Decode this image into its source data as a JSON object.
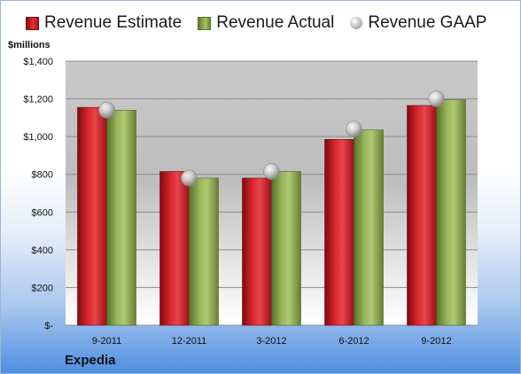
{
  "chart_data": {
    "type": "bar",
    "title": "",
    "units_label": "$millions",
    "company": "Expedia",
    "categories": [
      "9-2011",
      "12-2011",
      "3-2012",
      "6-2012",
      "9-2012"
    ],
    "series": [
      {
        "name": "Revenue Estimate",
        "kind": "bar",
        "color": "#c8161f",
        "values": [
          1155,
          815,
          780,
          985,
          1165
        ]
      },
      {
        "name": "Revenue Actual",
        "kind": "bar",
        "color": "#8fad4f",
        "values": [
          1140,
          780,
          815,
          1035,
          1195
        ]
      },
      {
        "name": "Revenue GAAP",
        "kind": "marker",
        "color": "#b0b0b0",
        "values": [
          1140,
          780,
          815,
          1040,
          1200
        ]
      }
    ],
    "ylim": [
      0,
      1400
    ],
    "yticks": [
      {
        "value": 0,
        "label": "$-"
      },
      {
        "value": 200,
        "label": "$200"
      },
      {
        "value": 400,
        "label": "$400"
      },
      {
        "value": 600,
        "label": "$600"
      },
      {
        "value": 800,
        "label": "$800"
      },
      {
        "value": 1000,
        "label": "$1,000"
      },
      {
        "value": 1200,
        "label": "$1,200"
      },
      {
        "value": 1400,
        "label": "$1,400"
      }
    ],
    "grid": true,
    "legend_position": "top"
  }
}
